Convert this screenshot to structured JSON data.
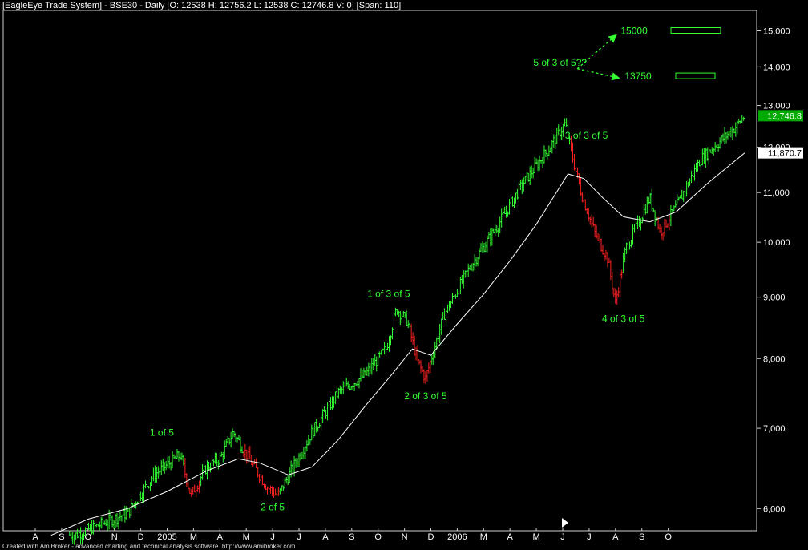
{
  "window": {
    "title": "[EagleEye Trade  System] - BSE30 - Daily [O: 12538 H: 12756.2 L: 12538 C: 12746.8 V: 0] [Span: 110]",
    "footer": "Created with AmiBroker - advanced charting and technical analysis software. http://www.amibroker.com"
  },
  "chart_data": {
    "type": "line",
    "symbol": "BSE30",
    "period": "Daily",
    "y_scale": "log",
    "ylim": [
      5750,
      15600
    ],
    "y_ticks": [
      {
        "value": 6000,
        "label": "6,000"
      },
      {
        "value": 7000,
        "label": "7,000"
      },
      {
        "value": 8000,
        "label": "8,000"
      },
      {
        "value": 9000,
        "label": "9,000"
      },
      {
        "value": 10000,
        "label": "10,000"
      },
      {
        "value": 11000,
        "label": "11,000"
      },
      {
        "value": 12000,
        "label": "12,000"
      },
      {
        "value": 13000,
        "label": "13,000"
      },
      {
        "value": 14000,
        "label": "14,000"
      },
      {
        "value": 15000,
        "label": "15,000"
      }
    ],
    "x_tick_labels": [
      "A",
      "S",
      "O",
      "N",
      "D",
      "2005",
      "M",
      "A",
      "M",
      "J",
      "J",
      "A",
      "S",
      "O",
      "N",
      "D",
      "2006",
      "M",
      "A",
      "M",
      "J",
      "J",
      "A",
      "S",
      "O"
    ],
    "last_price": {
      "value": 12746.8,
      "label": "12,746.8",
      "color": "#00aa00"
    },
    "ma_value": {
      "value": 11870.7,
      "label": "11,870.7",
      "color": "#ffffff"
    },
    "price_path": [
      {
        "x": 0.0,
        "y": 5750
      },
      {
        "x": 1.5,
        "y": 5700
      },
      {
        "x": 3.5,
        "y": 5950
      },
      {
        "x": 4.5,
        "y": 6400
      },
      {
        "x": 5.5,
        "y": 6650
      },
      {
        "x": 5.9,
        "y": 6150
      },
      {
        "x": 6.5,
        "y": 6500
      },
      {
        "x": 7.0,
        "y": 6600
      },
      {
        "x": 7.5,
        "y": 6950
      },
      {
        "x": 8.3,
        "y": 6500
      },
      {
        "x": 8.8,
        "y": 6250
      },
      {
        "x": 9.2,
        "y": 6150
      },
      {
        "x": 9.7,
        "y": 6450
      },
      {
        "x": 10.5,
        "y": 6950
      },
      {
        "x": 11.5,
        "y": 7500
      },
      {
        "x": 12.5,
        "y": 7750
      },
      {
        "x": 13.3,
        "y": 8150
      },
      {
        "x": 13.7,
        "y": 8800
      },
      {
        "x": 14.1,
        "y": 8600
      },
      {
        "x": 14.5,
        "y": 7950
      },
      {
        "x": 14.8,
        "y": 7700
      },
      {
        "x": 15.5,
        "y": 8700
      },
      {
        "x": 16.5,
        "y": 9550
      },
      {
        "x": 17.5,
        "y": 10300
      },
      {
        "x": 18.5,
        "y": 11200
      },
      {
        "x": 19.4,
        "y": 11900
      },
      {
        "x": 20.1,
        "y": 12550
      },
      {
        "x": 20.4,
        "y": 11700
      },
      {
        "x": 20.7,
        "y": 11000
      },
      {
        "x": 21.2,
        "y": 10200
      },
      {
        "x": 21.7,
        "y": 9700
      },
      {
        "x": 22.0,
        "y": 8900
      },
      {
        "x": 22.4,
        "y": 9900
      },
      {
        "x": 22.9,
        "y": 10400
      },
      {
        "x": 23.3,
        "y": 10900
      },
      {
        "x": 23.7,
        "y": 10200
      },
      {
        "x": 24.3,
        "y": 10700
      },
      {
        "x": 25.2,
        "y": 11700
      },
      {
        "x": 25.8,
        "y": 12050
      },
      {
        "x": 26.6,
        "y": 12500
      },
      {
        "x": 26.9,
        "y": 12750
      }
    ],
    "ma_path": [
      {
        "x": 0.6,
        "y": 5700
      },
      {
        "x": 2.0,
        "y": 5880
      },
      {
        "x": 3.5,
        "y": 6000
      },
      {
        "x": 5.0,
        "y": 6200
      },
      {
        "x": 6.5,
        "y": 6450
      },
      {
        "x": 7.7,
        "y": 6600
      },
      {
        "x": 8.5,
        "y": 6550
      },
      {
        "x": 9.6,
        "y": 6400
      },
      {
        "x": 10.5,
        "y": 6500
      },
      {
        "x": 11.5,
        "y": 6850
      },
      {
        "x": 12.5,
        "y": 7300
      },
      {
        "x": 13.5,
        "y": 7750
      },
      {
        "x": 14.3,
        "y": 8150
      },
      {
        "x": 15.0,
        "y": 8050
      },
      {
        "x": 16.0,
        "y": 8550
      },
      {
        "x": 17.0,
        "y": 9050
      },
      {
        "x": 18.0,
        "y": 9650
      },
      {
        "x": 19.0,
        "y": 10350
      },
      {
        "x": 20.2,
        "y": 11400
      },
      {
        "x": 20.8,
        "y": 11300
      },
      {
        "x": 21.5,
        "y": 10900
      },
      {
        "x": 22.3,
        "y": 10500
      },
      {
        "x": 23.3,
        "y": 10400
      },
      {
        "x": 24.3,
        "y": 10600
      },
      {
        "x": 25.5,
        "y": 11200
      },
      {
        "x": 26.9,
        "y": 11870
      }
    ],
    "wave_labels": [
      {
        "text": "1 of 5",
        "x": 4.8,
        "y": 6900
      },
      {
        "text": "2 of 5",
        "x": 9.0,
        "y": 5980
      },
      {
        "text": "1 of 3 of 5",
        "x": 13.4,
        "y": 9000
      },
      {
        "text": "2 of 3 of 5",
        "x": 14.8,
        "y": 7400
      },
      {
        "text": "3 of 3 of 5",
        "x": 20.9,
        "y": 12200
      },
      {
        "text": "4 of 3 of 5",
        "x": 22.3,
        "y": 8580
      },
      {
        "text": "5 of 3 of 5??",
        "x": 19.9,
        "y": 14030
      }
    ],
    "targets": [
      {
        "label": "15000",
        "value": 15000
      },
      {
        "label": "13750",
        "value": 13750
      }
    ],
    "colors": {
      "up": "#33ff33",
      "down": "#ff2222",
      "ma": "#ffffff",
      "label": "#33ff33",
      "background": "#000000"
    }
  }
}
